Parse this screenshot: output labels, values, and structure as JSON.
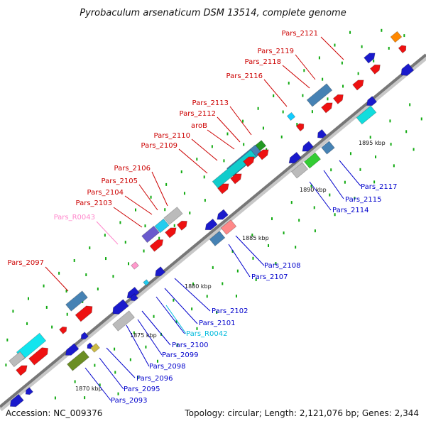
{
  "title": "Pyrobaculum arsenaticum DSM 13514, complete genome",
  "footer": {
    "accession": "Accession: NC_009376",
    "topology": "Topology: circular; Length: 2,121,076 bp; Genes: 2,344"
  },
  "colors": {
    "forward_label": "#cc0000",
    "reverse_label": "#0000cc",
    "rrna_forward_label": "#ff88cc",
    "rrna_reverse_label": "#00bbdd",
    "backbone": "#888888",
    "tick": "#11aa11"
  },
  "scale_labels": [
    {
      "text": "1870 kbp"
    },
    {
      "text": "1875 kbp"
    },
    {
      "text": "1880 kbp"
    },
    {
      "text": "1885 kbp"
    },
    {
      "text": "1890 kbp"
    },
    {
      "text": "1895 kbp"
    }
  ],
  "gene_labels": [
    {
      "name": "Pars_2121",
      "strand": "forward"
    },
    {
      "name": "Pars_2119",
      "strand": "forward"
    },
    {
      "name": "Pars_2118",
      "strand": "forward"
    },
    {
      "name": "Pars_2116",
      "strand": "forward"
    },
    {
      "name": "Pars_2113",
      "strand": "forward"
    },
    {
      "name": "Pars_2112",
      "strand": "forward"
    },
    {
      "name": "aroB",
      "strand": "forward"
    },
    {
      "name": "Pars_2110",
      "strand": "forward"
    },
    {
      "name": "Pars_2109",
      "strand": "forward"
    },
    {
      "name": "Pars_2106",
      "strand": "forward"
    },
    {
      "name": "Pars_2105",
      "strand": "forward"
    },
    {
      "name": "Pars_2104",
      "strand": "forward"
    },
    {
      "name": "Pars_2103",
      "strand": "forward"
    },
    {
      "name": "Pars_R0043",
      "strand": "rrna-forward"
    },
    {
      "name": "Pars_2097",
      "strand": "forward"
    },
    {
      "name": "Pars_2117",
      "strand": "reverse"
    },
    {
      "name": "Pars_2115",
      "strand": "reverse"
    },
    {
      "name": "Pars_2114",
      "strand": "reverse"
    },
    {
      "name": "Pars_2108",
      "strand": "reverse"
    },
    {
      "name": "Pars_2107",
      "strand": "reverse"
    },
    {
      "name": "Pars_2102",
      "strand": "reverse"
    },
    {
      "name": "Pars_2101",
      "strand": "reverse"
    },
    {
      "name": "Pars_R0042",
      "strand": "rrna-reverse"
    },
    {
      "name": "Pars_2100",
      "strand": "reverse"
    },
    {
      "name": "Pars_2099",
      "strand": "reverse"
    },
    {
      "name": "Pars_2098",
      "strand": "reverse"
    },
    {
      "name": "Pars_2096",
      "strand": "reverse"
    },
    {
      "name": "Pars_2095",
      "strand": "reverse"
    },
    {
      "name": "Pars_2093",
      "strand": "reverse"
    }
  ]
}
